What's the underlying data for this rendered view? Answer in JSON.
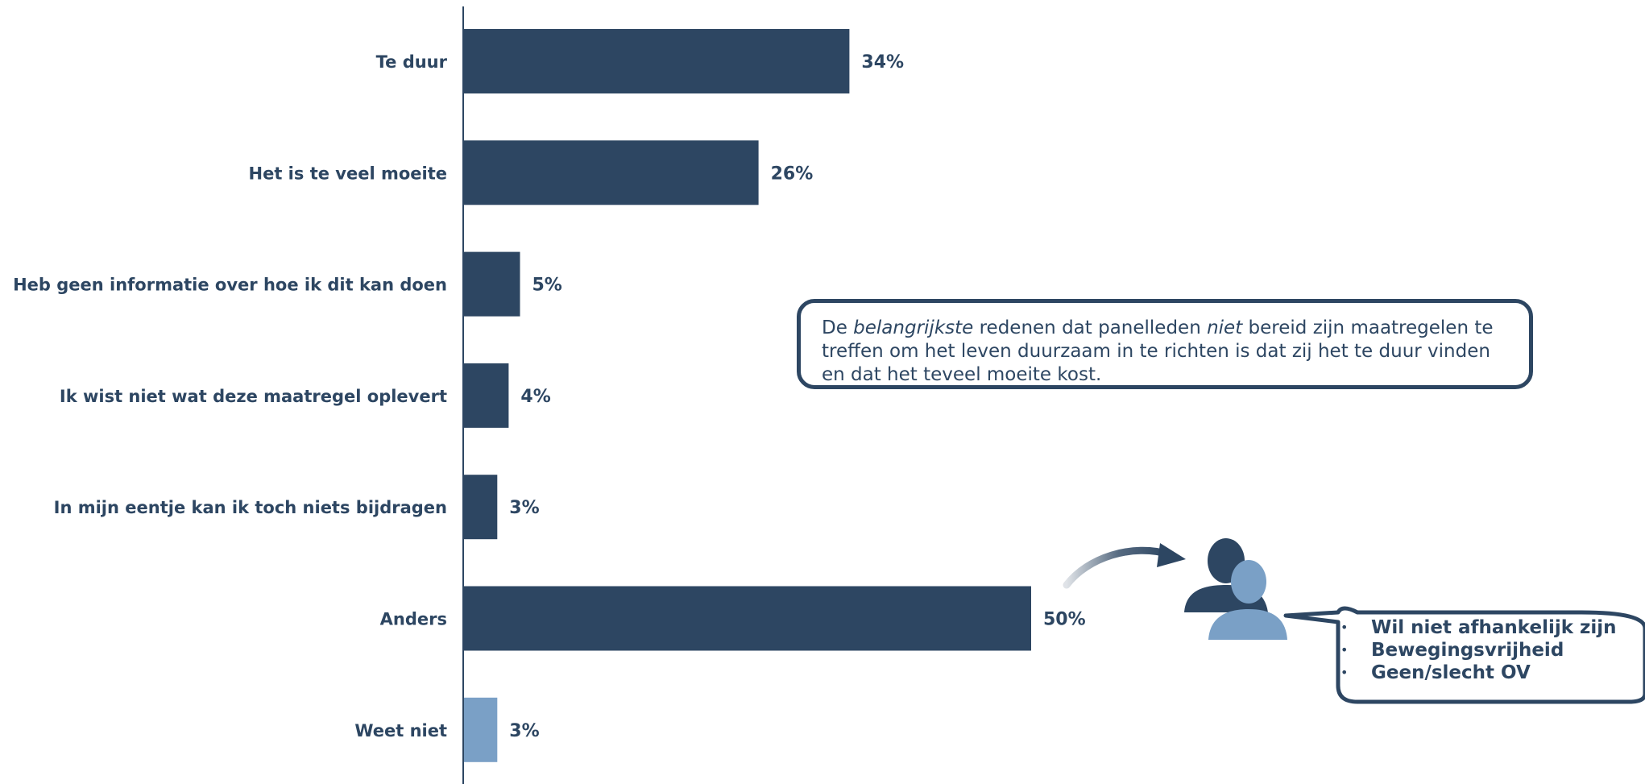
{
  "chart_data": {
    "type": "bar",
    "orientation": "horizontal",
    "categories": [
      "Te duur",
      "Het is te veel moeite",
      "Heb geen informatie over hoe ik dit kan doen",
      "Ik wist niet wat deze maatregel oplevert",
      "In mijn eentje kan ik toch niets bijdragen",
      "Anders",
      "Weet niet"
    ],
    "values": [
      34,
      26,
      5,
      4,
      3,
      50,
      3
    ],
    "value_labels": [
      "34%",
      "26%",
      "5%",
      "4%",
      "3%",
      "50%",
      "3%"
    ],
    "bar_colors": [
      "#2d4662",
      "#2d4662",
      "#2d4662",
      "#2d4662",
      "#2d4662",
      "#2d4662",
      "#7aa0c6"
    ],
    "title": "",
    "xlabel": "",
    "ylabel": "",
    "xlim": [
      0,
      100
    ],
    "grid": false,
    "legend": "none"
  },
  "callout": {
    "part1": "De ",
    "emph1": "belangrijkste",
    "part2": " redenen dat panelleden ",
    "emph2": "niet",
    "part3": " bereid zijn maatregelen te treffen om het leven duurzaam in te richten is dat zij het te duur vinden en dat het teveel moeite kost."
  },
  "anders_reasons": [
    "Wil niet afhankelijk zijn",
    "Bewegingsvrijheid",
    "Geen/slecht OV"
  ],
  "icon": "people-icon",
  "colors": {
    "primary": "#2d4662",
    "accent": "#7aa0c6",
    "axis": "#2d4662"
  }
}
